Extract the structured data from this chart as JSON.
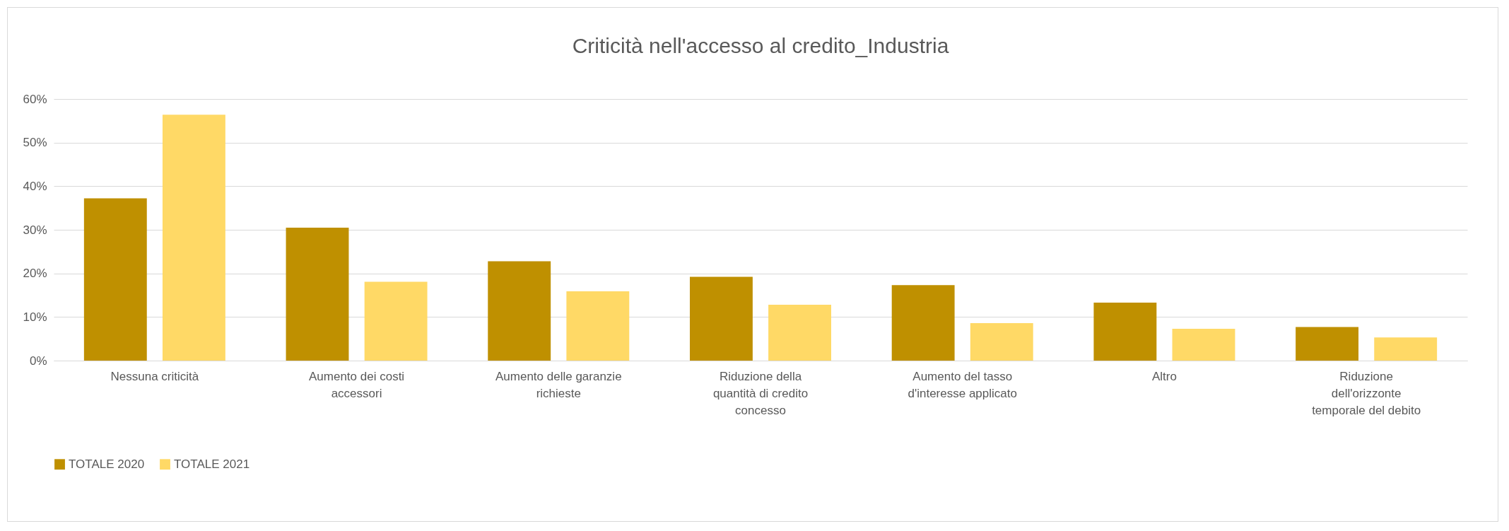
{
  "chart_data": {
    "type": "bar",
    "title": "Criticità nell'accesso al credito_Industria",
    "categories": [
      "Nessuna criticità",
      "Aumento dei costi accessori",
      "Aumento delle garanzie richieste",
      "Riduzione della quantità di credito concesso",
      "Aumento del tasso d'interesse applicato",
      "Altro",
      "Riduzione dell'orizzonte temporale del debito"
    ],
    "series": [
      {
        "name": "TOTALE 2020",
        "color": "#bf9000",
        "values": [
          37.2,
          30.5,
          22.8,
          19.2,
          17.3,
          13.3,
          7.7
        ]
      },
      {
        "name": "TOTALE 2021",
        "color": "#ffd966",
        "values": [
          56.4,
          18.1,
          15.9,
          12.8,
          8.6,
          7.3,
          5.3
        ]
      }
    ],
    "ylim": [
      0,
      60
    ],
    "yticks": [
      {
        "value": 0,
        "label": "0%"
      },
      {
        "value": 10,
        "label": "10%"
      },
      {
        "value": 20,
        "label": "20%"
      },
      {
        "value": 30,
        "label": "30%"
      },
      {
        "value": 40,
        "label": "40%"
      },
      {
        "value": 50,
        "label": "50%"
      },
      {
        "value": 60,
        "label": "60%"
      }
    ],
    "grid": "y",
    "legend": "bottom"
  }
}
